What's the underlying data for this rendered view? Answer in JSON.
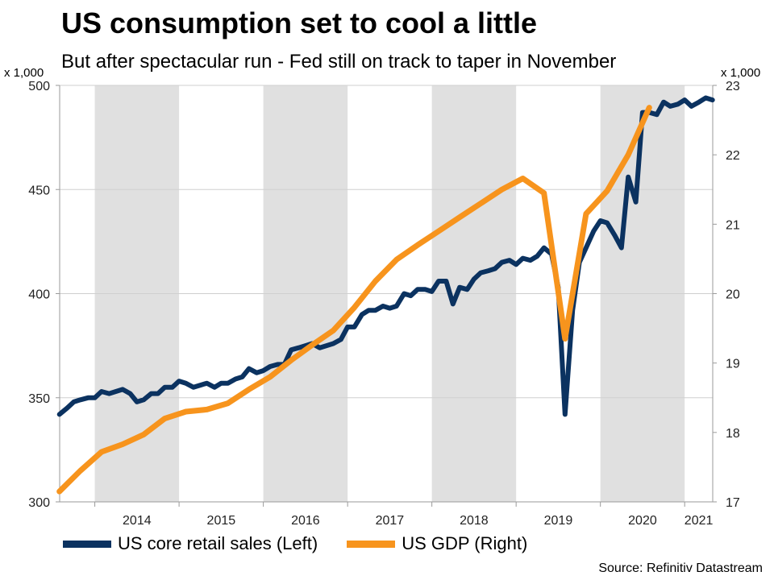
{
  "chart_data": {
    "type": "line",
    "title": "US consumption set to cool a little",
    "subtitle": "But after spectacular run - Fed still on track to taper in November",
    "source": "Source: Refinitiv Datastream",
    "left_axis": {
      "unit_label": "x 1,000",
      "ylim": [
        300,
        500
      ],
      "ticks": [
        300,
        350,
        400,
        450,
        500
      ]
    },
    "right_axis": {
      "unit_label": "x 1,000",
      "ylim": [
        17,
        23
      ],
      "ticks": [
        17,
        18,
        19,
        20,
        21,
        22,
        23
      ]
    },
    "x_axis": {
      "xlim": [
        2013.583,
        2021.333
      ],
      "categories": [
        "2014",
        "2015",
        "2016",
        "2017",
        "2018",
        "2019",
        "2020",
        "2021"
      ]
    },
    "grid": true,
    "shaded_years": [
      "2014",
      "2016",
      "2018",
      "2020"
    ],
    "legend_position": "bottom",
    "series": [
      {
        "name": "US core retail sales (Left)",
        "color": "#0b3260",
        "axis": "left",
        "x": [
          2013.58,
          2013.67,
          2013.75,
          2013.83,
          2013.92,
          2014.0,
          2014.08,
          2014.17,
          2014.25,
          2014.33,
          2014.42,
          2014.5,
          2014.58,
          2014.67,
          2014.75,
          2014.83,
          2014.92,
          2015.0,
          2015.08,
          2015.17,
          2015.25,
          2015.33,
          2015.42,
          2015.5,
          2015.58,
          2015.67,
          2015.75,
          2015.83,
          2015.92,
          2016.0,
          2016.08,
          2016.17,
          2016.25,
          2016.33,
          2016.42,
          2016.5,
          2016.58,
          2016.67,
          2016.75,
          2016.83,
          2016.92,
          2017.0,
          2017.08,
          2017.17,
          2017.25,
          2017.33,
          2017.42,
          2017.5,
          2017.58,
          2017.67,
          2017.75,
          2017.83,
          2017.92,
          2018.0,
          2018.08,
          2018.17,
          2018.25,
          2018.33,
          2018.42,
          2018.5,
          2018.58,
          2018.67,
          2018.75,
          2018.83,
          2018.92,
          2019.0,
          2019.08,
          2019.17,
          2019.25,
          2019.33,
          2019.42,
          2019.5,
          2019.58,
          2019.67,
          2019.75,
          2019.83,
          2019.92,
          2020.0,
          2020.08,
          2020.17,
          2020.25,
          2020.33,
          2020.42,
          2020.5,
          2020.58,
          2020.67,
          2020.75,
          2020.83,
          2020.92,
          2021.0,
          2021.08,
          2021.17,
          2021.25,
          2021.33,
          2021.42,
          2021.5
        ],
        "values": [
          342,
          345,
          348,
          349,
          350,
          350,
          353,
          352,
          353,
          354,
          352,
          348,
          349,
          352,
          352,
          355,
          355,
          358,
          357,
          355,
          356,
          357,
          355,
          357,
          357,
          359,
          360,
          364,
          362,
          363,
          365,
          366,
          366,
          373,
          374,
          375,
          376,
          374,
          375,
          376,
          378,
          384,
          384,
          390,
          392,
          392,
          394,
          393,
          394,
          400,
          399,
          402,
          402,
          401,
          406,
          406,
          395,
          403,
          402,
          407,
          410,
          411,
          412,
          415,
          416,
          414,
          417,
          416,
          418,
          422,
          419,
          403,
          342,
          392,
          415,
          422,
          430,
          435,
          434,
          428,
          422,
          456,
          444,
          487,
          487,
          486,
          492,
          490,
          491,
          493,
          490,
          492,
          494,
          493,
          492,
          491
        ],
        "n_points_drawn": 94
      },
      {
        "name": "US GDP (Right)",
        "color": "#f7941d",
        "axis": "right",
        "x": [
          2013.58,
          2013.83,
          2014.08,
          2014.33,
          2014.58,
          2014.83,
          2015.08,
          2015.33,
          2015.58,
          2015.83,
          2016.08,
          2016.33,
          2016.58,
          2016.83,
          2017.08,
          2017.33,
          2017.58,
          2017.83,
          2018.08,
          2018.33,
          2018.58,
          2018.83,
          2019.08,
          2019.33,
          2019.58,
          2019.83,
          2020.08,
          2020.33,
          2020.58,
          2020.83,
          2021.08,
          2021.33
        ],
        "values": [
          17.15,
          17.45,
          17.72,
          17.83,
          17.97,
          18.2,
          18.3,
          18.33,
          18.42,
          18.62,
          18.8,
          19.04,
          19.26,
          19.47,
          19.8,
          20.18,
          20.49,
          20.7,
          20.9,
          21.1,
          21.3,
          21.5,
          21.66,
          21.45,
          19.35,
          21.15,
          21.48,
          22.0,
          22.68,
          22.68,
          22.68,
          22.68
        ],
        "n_points_drawn": 29
      }
    ]
  }
}
